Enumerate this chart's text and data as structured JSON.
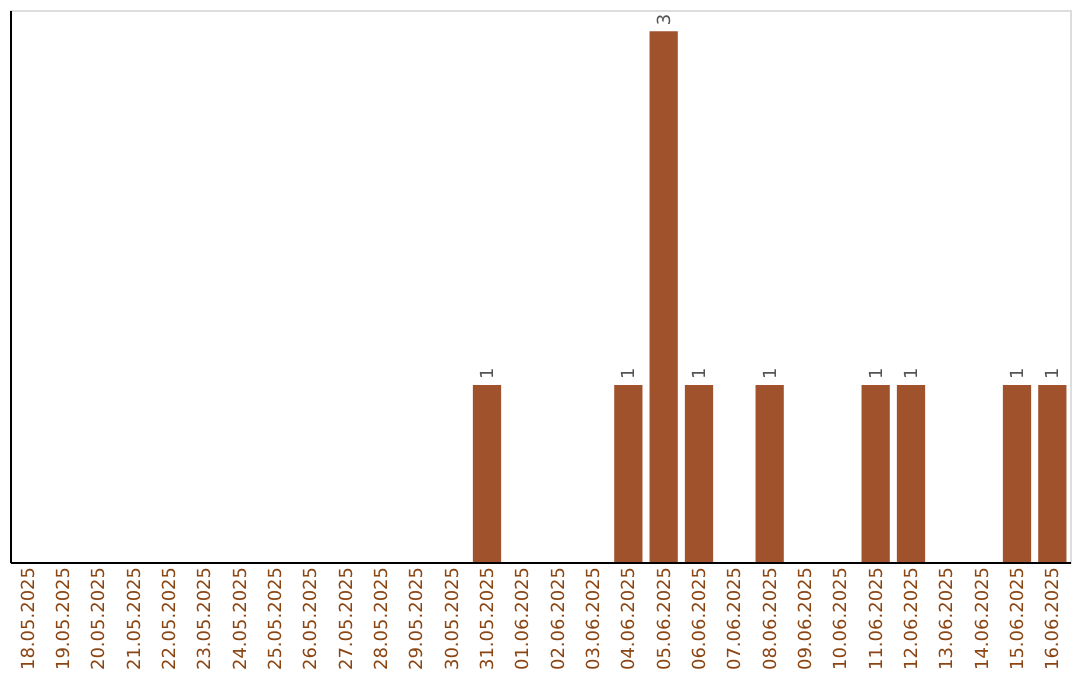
{
  "chart_data": {
    "type": "bar",
    "categories": [
      "18.05.2025",
      "19.05.2025",
      "20.05.2025",
      "21.05.2025",
      "22.05.2025",
      "23.05.2025",
      "24.05.2025",
      "25.05.2025",
      "26.05.2025",
      "27.05.2025",
      "28.05.2025",
      "29.05.2025",
      "30.05.2025",
      "31.05.2025",
      "01.06.2025",
      "02.06.2025",
      "03.06.2025",
      "04.06.2025",
      "05.06.2025",
      "06.06.2025",
      "07.06.2025",
      "08.06.2025",
      "09.06.2025",
      "10.06.2025",
      "11.06.2025",
      "12.06.2025",
      "13.06.2025",
      "14.06.2025",
      "15.06.2025",
      "16.06.2025"
    ],
    "values": [
      null,
      null,
      null,
      null,
      null,
      null,
      null,
      null,
      null,
      null,
      null,
      null,
      null,
      1,
      null,
      null,
      null,
      1,
      3,
      1,
      null,
      1,
      null,
      null,
      1,
      1,
      null,
      null,
      1,
      1
    ],
    "data_labels": true,
    "color": "#a0522d",
    "ylim": [
      0,
      3.12
    ],
    "tick_labels": "x",
    "grid": false
  }
}
